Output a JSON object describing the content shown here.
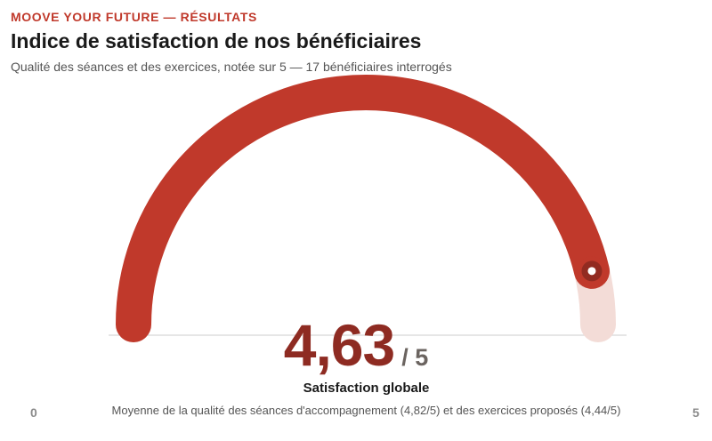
{
  "header": {
    "kicker": "MOOVE YOUR FUTURE — RÉSULTATS",
    "title": "Indice de satisfaction de nos bénéficiaires",
    "subtitle": "Qualité des séances et des exercices, notée sur 5 — 17 bénéficiaires interrogés"
  },
  "chart_data": {
    "type": "gauge",
    "value": 4.63,
    "min": 0,
    "max": 5,
    "value_text": "4,63",
    "max_text": "/ 5",
    "value_label": "Satisfaction globale",
    "note": "Moyenne de la qualité des séances d'accompagnement (4,82/5) et des exercices proposés (4,44/5)",
    "tick_min": "0",
    "tick_max": "5",
    "colors": {
      "fill": "#c0392b",
      "track": "#f3dcd7",
      "marker": "#922b21",
      "baseline": "#dddddd"
    }
  }
}
